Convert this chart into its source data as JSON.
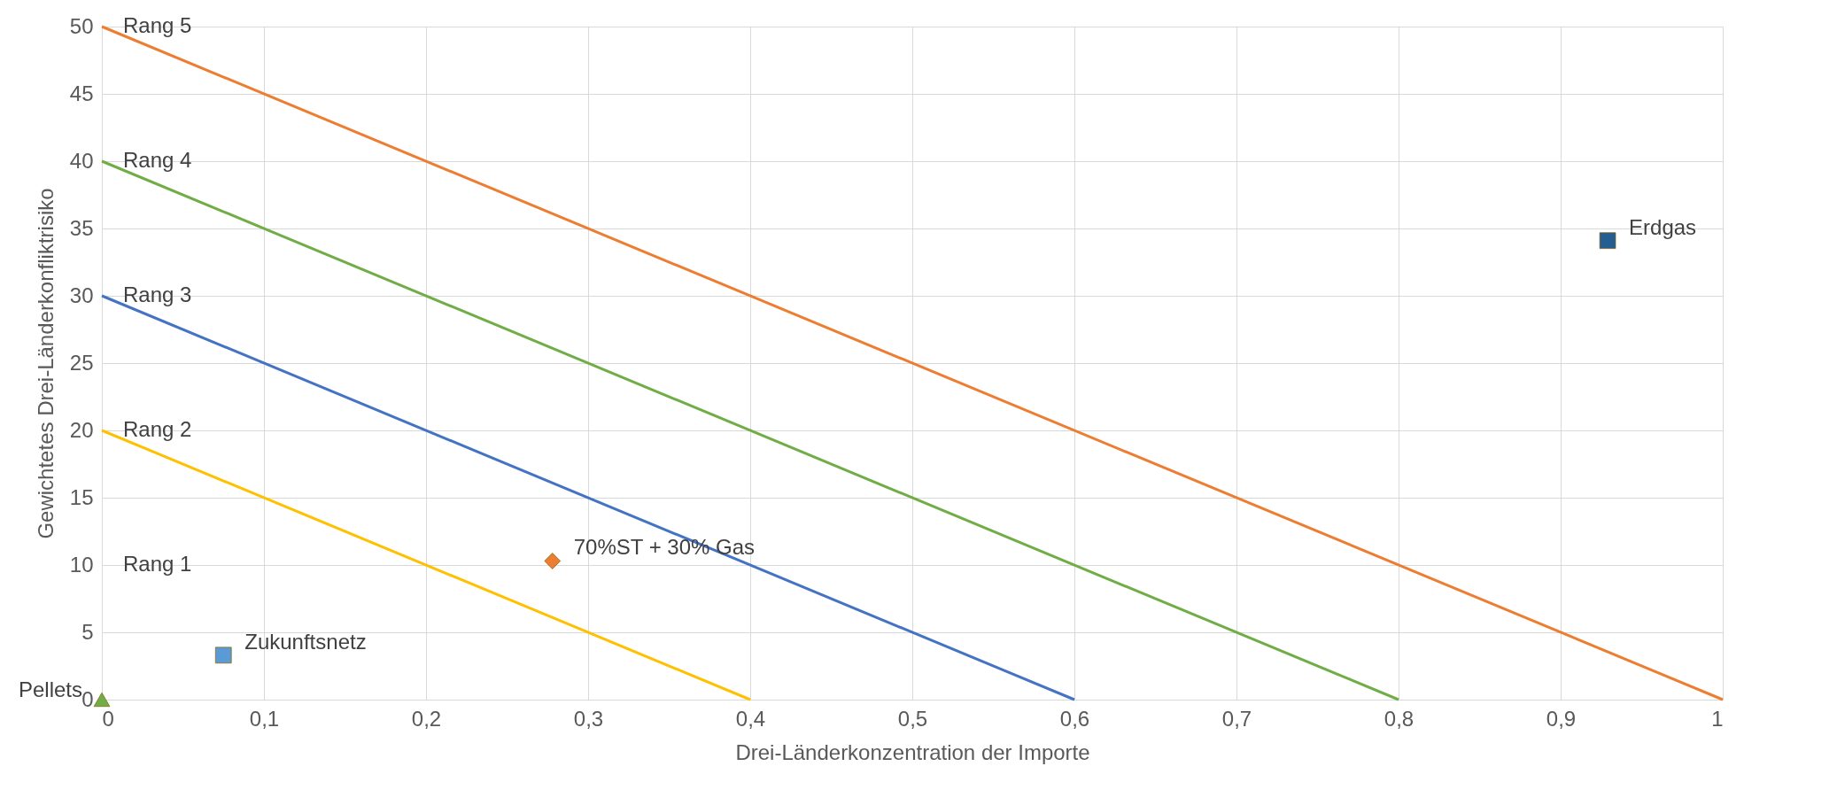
{
  "chart_data": {
    "type": "line",
    "xlabel": "Drei-Länderkonzentration der Importe",
    "ylabel": "Gewichtetes Drei-Länderkonfliktrisiko",
    "xlim": [
      0,
      1
    ],
    "xticks": [
      {
        "value": 0,
        "label": "0"
      },
      {
        "value": 0.1,
        "label": "0,1"
      },
      {
        "value": 0.2,
        "label": "0,2"
      },
      {
        "value": 0.3,
        "label": "0,3"
      },
      {
        "value": 0.4,
        "label": "0,4"
      },
      {
        "value": 0.5,
        "label": "0,5"
      },
      {
        "value": 0.6,
        "label": "0,6"
      },
      {
        "value": 0.7,
        "label": "0,7"
      },
      {
        "value": 0.8,
        "label": "0,8"
      },
      {
        "value": 0.9,
        "label": "0,9"
      },
      {
        "value": 1,
        "label": "1"
      }
    ],
    "ylim": [
      0,
      50
    ],
    "yticks": [
      0,
      5,
      10,
      15,
      20,
      25,
      30,
      35,
      40,
      45,
      50
    ],
    "grid": true,
    "annotations": [
      "Rang 1"
    ],
    "series": [
      {
        "name": "Rang 2",
        "color": "#ffc000",
        "x": [
          0,
          0.4
        ],
        "values": [
          20,
          0
        ]
      },
      {
        "name": "Rang 3",
        "color": "#4472c4",
        "x": [
          0,
          0.6
        ],
        "values": [
          30,
          0
        ]
      },
      {
        "name": "Rang 4",
        "color": "#70ad47",
        "x": [
          0,
          0.8
        ],
        "values": [
          40,
          0
        ]
      },
      {
        "name": "Rang 5",
        "color": "#ed7d31",
        "x": [
          0,
          1
        ],
        "values": [
          50,
          0
        ]
      },
      {
        "name": "Pellets",
        "type": "scatter",
        "marker": "triangle",
        "color": "#70ad47",
        "x": [
          0
        ],
        "values": [
          0
        ]
      },
      {
        "name": "Zukunftsnetz",
        "type": "scatter",
        "marker": "square",
        "color": "#5b9bd5",
        "x": [
          0.075
        ],
        "values": [
          3.3
        ]
      },
      {
        "name": "70%ST + 30% Gas",
        "type": "scatter",
        "marker": "diamond",
        "color": "#ed7d31",
        "x": [
          0.278
        ],
        "values": [
          10.3
        ]
      },
      {
        "name": "Erdgas",
        "type": "scatter",
        "marker": "square",
        "color": "#255e91",
        "x": [
          0.929
        ],
        "values": [
          34.1
        ]
      }
    ]
  }
}
